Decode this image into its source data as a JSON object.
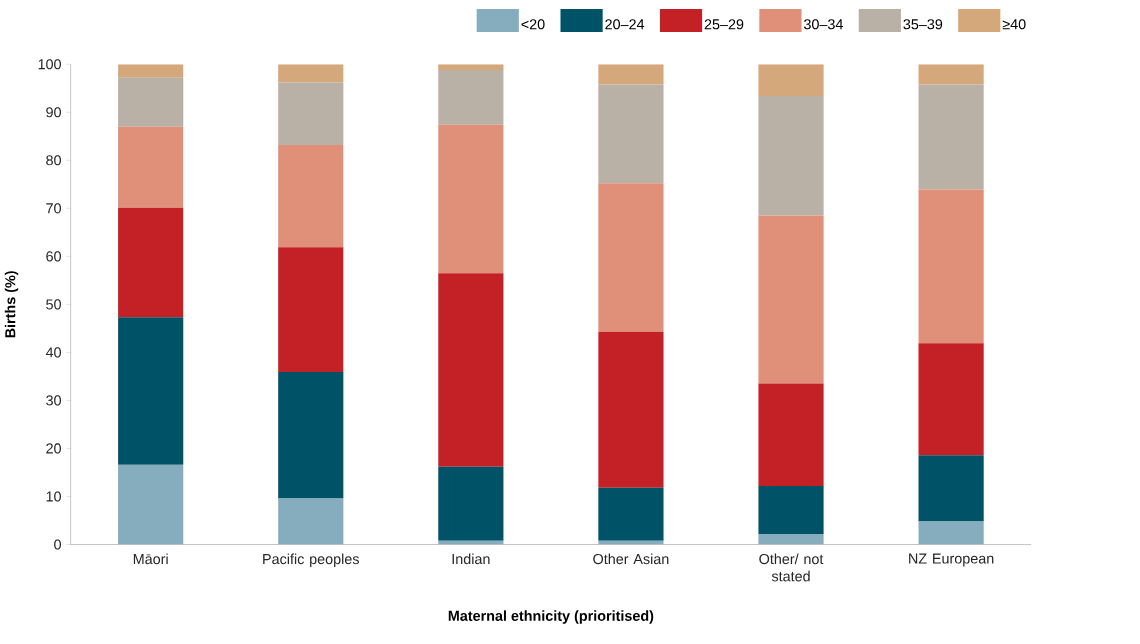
{
  "chart_data": {
    "type": "bar",
    "stacked": true,
    "xlabel": "Maternal ethnicity (prioritised)",
    "ylabel": "Births (%)",
    "categories": [
      "Māori",
      "Pacific peoples",
      "Indian",
      "Other Asian",
      "Other/ not stated",
      "NZ European"
    ],
    "ylim": [
      0,
      100
    ],
    "yticks": [
      0,
      10,
      20,
      30,
      40,
      50,
      60,
      70,
      80,
      90,
      100
    ],
    "grid": false,
    "legend": "top right",
    "series": [
      {
        "name": "<20",
        "color": "#85adbd",
        "values": [
          16.6,
          9.6,
          0.8,
          0.8,
          2.2,
          4.8
        ]
      },
      {
        "name": "20–24",
        "color": "#005366",
        "values": [
          30.7,
          26.3,
          15.4,
          11.0,
          10.0,
          13.8
        ]
      },
      {
        "name": "25–29",
        "color": "#c42127",
        "values": [
          22.8,
          26.0,
          40.3,
          32.5,
          21.3,
          23.3
        ]
      },
      {
        "name": "30–34",
        "color": "#e09078",
        "values": [
          16.9,
          21.3,
          30.9,
          30.9,
          35.0,
          32.0
        ]
      },
      {
        "name": "35–39",
        "color": "#bab1a6",
        "values": [
          10.2,
          13.0,
          11.4,
          20.6,
          24.9,
          21.9
        ]
      },
      {
        "name": "≥40",
        "color": "#d5a87c",
        "values": [
          2.8,
          3.8,
          1.2,
          4.2,
          6.6,
          4.2
        ]
      }
    ]
  }
}
